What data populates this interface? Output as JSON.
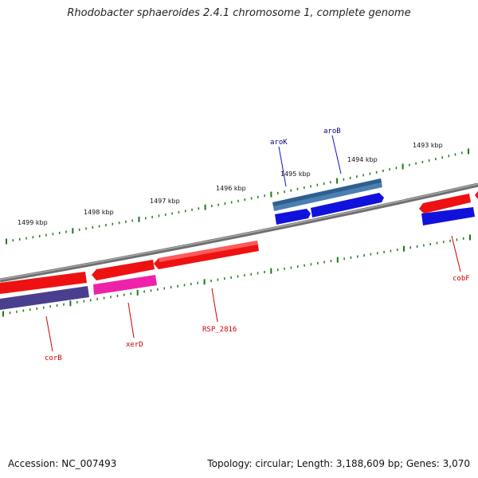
{
  "title": "Rhodobacter sphaeroides 2.4.1 chromosome 1, complete genome",
  "accession_label": "Accession: NC_007493",
  "summary_label": "Topology: circular; Length: 3,188,609 bp; Genes: 3,070",
  "colors": {
    "backbone": "#808080",
    "tick": "#1a7a1a",
    "forward_label": "#00008b",
    "reverse_label": "#cc0000",
    "red_gene": "#ee1111",
    "blue_gene": "#1111dd",
    "steelblue_gene": "#4a7fb0",
    "purple_gene": "#4a3f8f",
    "magenta_gene": "#ee22aa"
  },
  "tick_labels": [
    "1499 kbp",
    "1498 kbp",
    "1497 kbp",
    "1496 kbp",
    "1495 kbp",
    "1494 kbp",
    "1493 kbp"
  ],
  "gene_labels": {
    "aroK": "aroK",
    "aroB": "aroB",
    "cobF": "cobF",
    "corB": "corB",
    "xerD": "xerD",
    "RSP_2816": "RSP_2816"
  }
}
